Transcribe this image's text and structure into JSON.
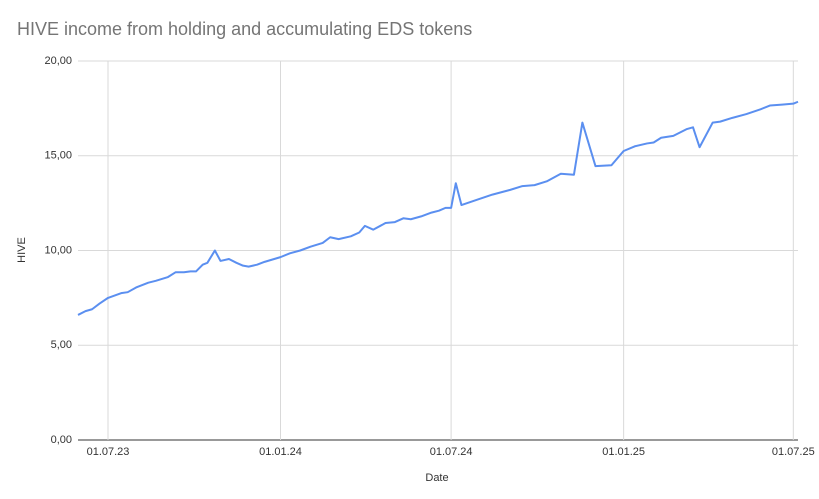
{
  "chart_data": {
    "type": "line",
    "title": "HIVE income from holding and accumulating EDS tokens",
    "x_label": "Date",
    "y_label": "HIVE",
    "x": [
      "2023-05-30",
      "2023-06-07",
      "2023-06-14",
      "2023-06-22",
      "2023-07-01",
      "2023-07-15",
      "2023-07-22",
      "2023-07-31",
      "2023-08-13",
      "2023-08-21",
      "2023-09-03",
      "2023-09-11",
      "2023-09-20",
      "2023-09-27",
      "2023-10-03",
      "2023-10-10",
      "2023-10-15",
      "2023-10-23",
      "2023-10-29",
      "2023-11-07",
      "2023-11-15",
      "2023-11-22",
      "2023-11-28",
      "2023-12-07",
      "2023-12-15",
      "2024-01-01",
      "2024-01-11",
      "2024-01-22",
      "2024-02-02",
      "2024-02-15",
      "2024-02-23",
      "2024-03-03",
      "2024-03-16",
      "2024-03-25",
      "2024-03-31",
      "2024-04-09",
      "2024-04-22",
      "2024-05-02",
      "2024-05-11",
      "2024-05-19",
      "2024-05-30",
      "2024-06-10",
      "2024-06-18",
      "2024-06-25",
      "2024-07-01",
      "2024-07-06",
      "2024-07-12",
      "2024-07-30",
      "2024-08-14",
      "2024-09-02",
      "2024-09-15",
      "2024-09-28",
      "2024-10-11",
      "2024-10-26",
      "2024-11-09",
      "2024-11-18",
      "2024-12-02",
      "2024-12-19",
      "2025-01-01",
      "2025-01-13",
      "2025-01-26",
      "2025-02-02",
      "2025-02-10",
      "2025-02-23",
      "2025-03-09",
      "2025-03-16",
      "2025-03-23",
      "2025-04-06",
      "2025-04-14",
      "2025-04-27",
      "2025-05-12",
      "2025-05-27",
      "2025-06-06",
      "2025-06-19",
      "2025-07-01",
      "2025-07-06"
    ],
    "series": [
      {
        "name": "HIVE",
        "color": "#5b8ff0",
        "values": [
          6.6,
          6.8,
          6.9,
          7.2,
          7.5,
          7.75,
          7.8,
          8.05,
          8.3,
          8.4,
          8.6,
          8.85,
          8.85,
          8.9,
          8.9,
          9.25,
          9.35,
          10.0,
          9.45,
          9.55,
          9.35,
          9.2,
          9.15,
          9.25,
          9.4,
          9.65,
          9.85,
          10.0,
          10.2,
          10.4,
          10.7,
          10.6,
          10.75,
          10.95,
          11.3,
          11.1,
          11.45,
          11.5,
          11.7,
          11.65,
          11.8,
          12.0,
          12.1,
          12.25,
          12.25,
          13.55,
          12.4,
          12.7,
          12.95,
          13.2,
          13.4,
          13.45,
          13.65,
          14.05,
          14.0,
          16.75,
          14.45,
          14.5,
          15.25,
          15.5,
          15.65,
          15.7,
          15.95,
          16.05,
          16.4,
          16.5,
          15.45,
          16.75,
          16.8,
          17.0,
          17.2,
          17.45,
          17.65,
          17.7,
          17.75,
          17.85
        ]
      }
    ],
    "xlim": [
      "2023-05-30",
      "2025-07-06"
    ],
    "xticks": [
      {
        "value": "2023-07-01",
        "label": "01.07.23"
      },
      {
        "value": "2024-01-01",
        "label": "01.01.24"
      },
      {
        "value": "2024-07-01",
        "label": "01.07.24"
      },
      {
        "value": "2025-01-01",
        "label": "01.01.25"
      },
      {
        "value": "2025-07-01",
        "label": "01.07.25"
      }
    ],
    "ylim": [
      0,
      20
    ],
    "yticks": [
      {
        "value": 0,
        "label": "0,00"
      },
      {
        "value": 5,
        "label": "5,00"
      },
      {
        "value": 10,
        "label": "10,00"
      },
      {
        "value": 15,
        "label": "15,00"
      },
      {
        "value": 20,
        "label": "20,00"
      }
    ],
    "grid": true
  }
}
